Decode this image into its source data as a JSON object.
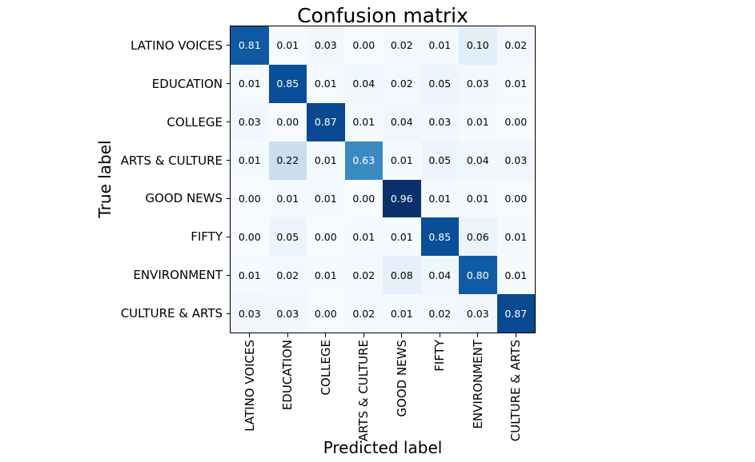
{
  "chart_data": {
    "type": "heatmap",
    "title": "Confusion matrix",
    "xlabel": "Predicted label",
    "ylabel": "True label",
    "categories": [
      "LATINO VOICES",
      "EDUCATION",
      "COLLEGE",
      "ARTS & CULTURE",
      "GOOD NEWS",
      "FIFTY",
      "ENVIRONMENT",
      "CULTURE & ARTS"
    ],
    "matrix": [
      [
        0.81,
        0.01,
        0.03,
        0.0,
        0.02,
        0.01,
        0.1,
        0.02
      ],
      [
        0.01,
        0.85,
        0.01,
        0.04,
        0.02,
        0.05,
        0.03,
        0.01
      ],
      [
        0.03,
        0.0,
        0.87,
        0.01,
        0.04,
        0.03,
        0.01,
        0.0
      ],
      [
        0.01,
        0.22,
        0.01,
        0.63,
        0.01,
        0.05,
        0.04,
        0.03
      ],
      [
        0.0,
        0.01,
        0.01,
        0.0,
        0.96,
        0.01,
        0.01,
        0.0
      ],
      [
        0.0,
        0.05,
        0.0,
        0.01,
        0.01,
        0.85,
        0.06,
        0.01
      ],
      [
        0.01,
        0.02,
        0.01,
        0.02,
        0.08,
        0.04,
        0.8,
        0.01
      ],
      [
        0.03,
        0.03,
        0.0,
        0.02,
        0.01,
        0.02,
        0.03,
        0.87
      ]
    ],
    "value_decimals": 2,
    "grid": false,
    "legend": "none",
    "colormap": {
      "name": "Blues",
      "vmin": 0.0,
      "vmax": 0.96,
      "stops": [
        [
          0.0,
          "#f7fbff"
        ],
        [
          0.125,
          "#deebf7"
        ],
        [
          0.25,
          "#c6dbef"
        ],
        [
          0.375,
          "#9ecae1"
        ],
        [
          0.5,
          "#6baed6"
        ],
        [
          0.625,
          "#4292c6"
        ],
        [
          0.75,
          "#2171b5"
        ],
        [
          0.875,
          "#08519c"
        ],
        [
          1.0,
          "#08306b"
        ]
      ]
    },
    "text_color_threshold": 0.48,
    "cell_text_colors": {
      "above": "#ffffff",
      "below": "#000000"
    },
    "axis_color": "#000000",
    "background": "#ffffff"
  }
}
